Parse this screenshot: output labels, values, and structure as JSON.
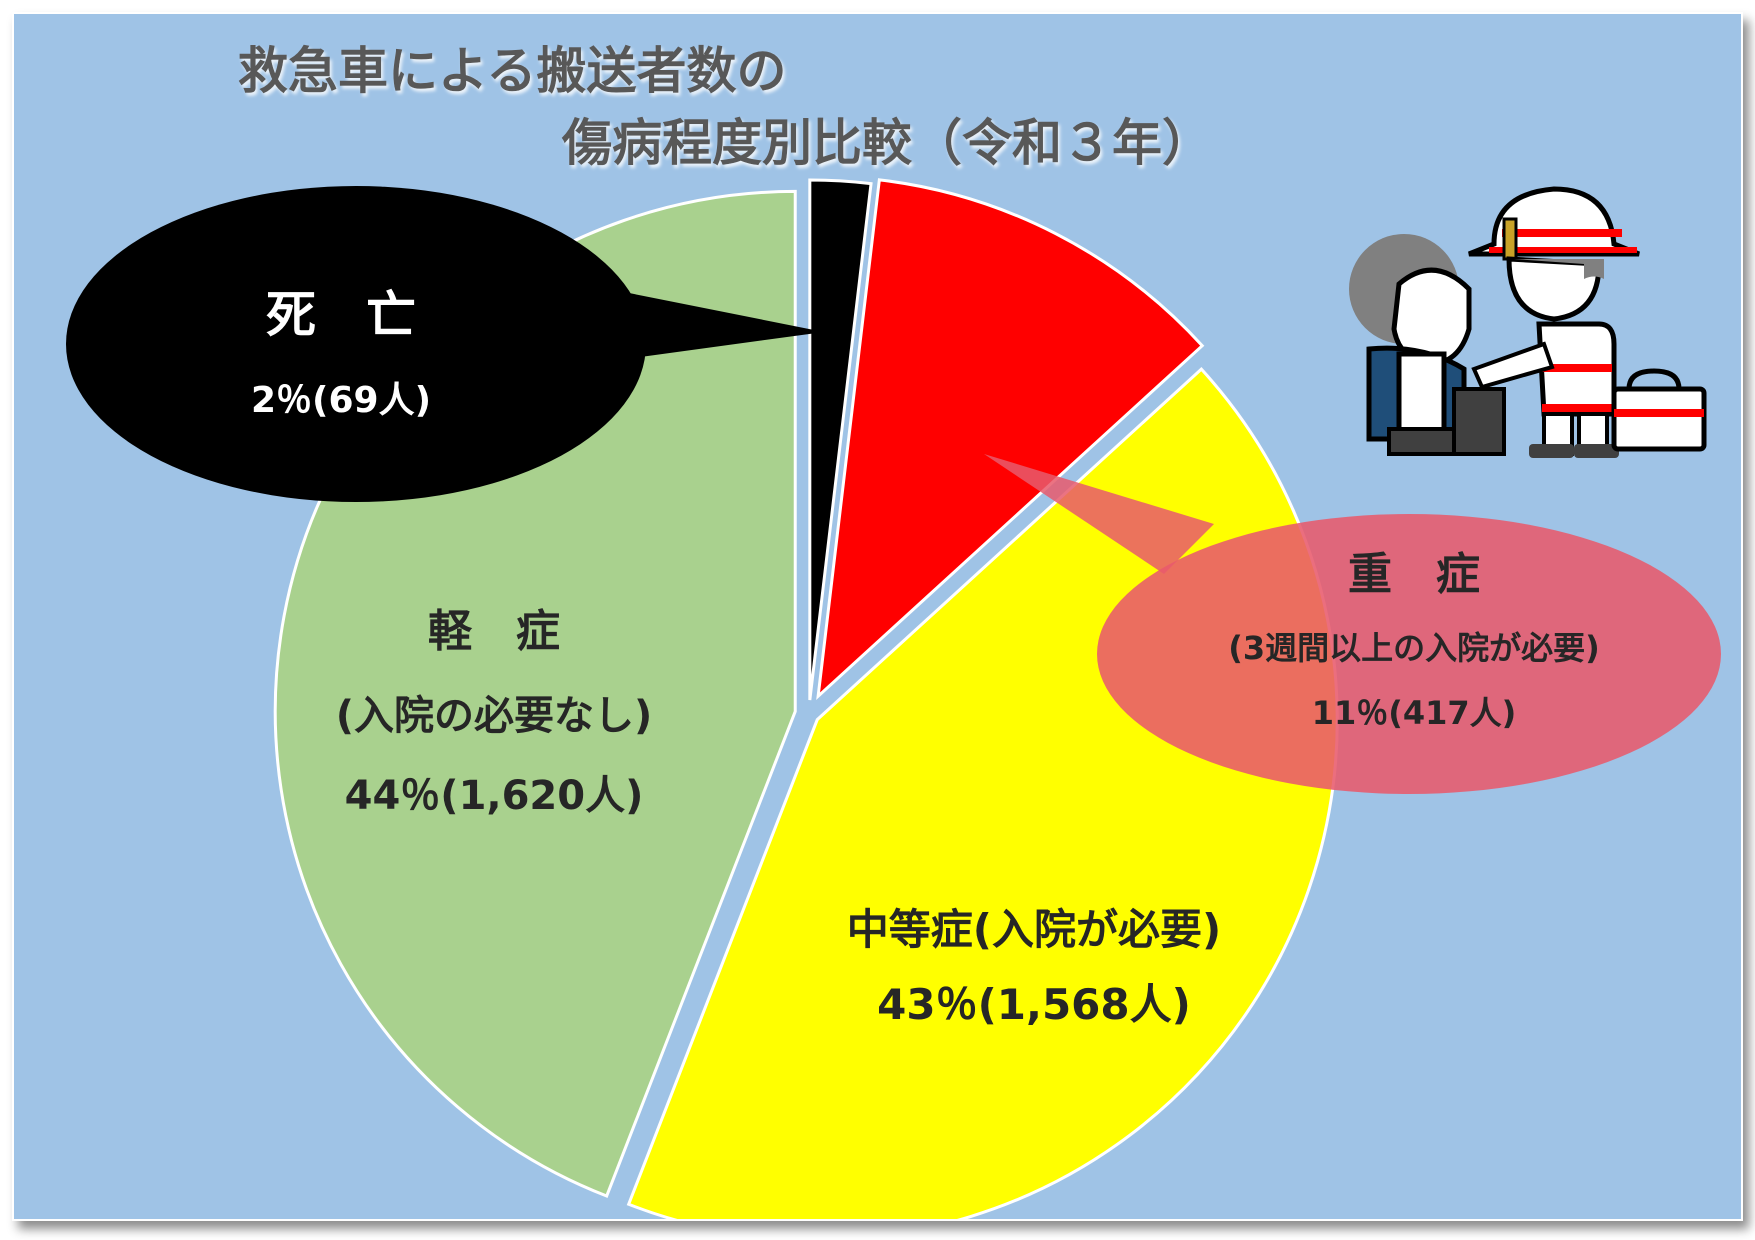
{
  "title": {
    "line1": "救急車による搬送者数の",
    "line2": "傷病程度別比較（令和３年）"
  },
  "chart_data": {
    "type": "pie",
    "title": "救急車による搬送者数の傷病程度別比較（令和３年）",
    "slices": [
      {
        "key": "death",
        "label": "死　亡",
        "sublabel": "",
        "value_label": "2％(69人)",
        "percent": 2,
        "count": 69,
        "color": "#000000"
      },
      {
        "key": "severe",
        "label": "重　症",
        "sublabel": "(3週間以上の入院が必要)",
        "value_label": "11％(417人)",
        "percent": 11,
        "count": 417,
        "color": "#ff0000"
      },
      {
        "key": "moderate",
        "label": "中等症(入院が必要)",
        "sublabel": "",
        "value_label": "43％(1,568人)",
        "percent": 43,
        "count": 1568,
        "color": "#ffff00"
      },
      {
        "key": "mild",
        "label": "軽　症",
        "sublabel": "(入院の必要なし)",
        "value_label": "44％(1,620人)",
        "percent": 44,
        "count": 1620,
        "color": "#a9d18e"
      }
    ]
  },
  "colors": {
    "background": "#9fc3e6",
    "title_text": "#595959",
    "callout_death": "#000000",
    "callout_severe": "#e85a6c"
  },
  "illustration": {
    "icon": "paramedic-attending-patient-icon"
  }
}
